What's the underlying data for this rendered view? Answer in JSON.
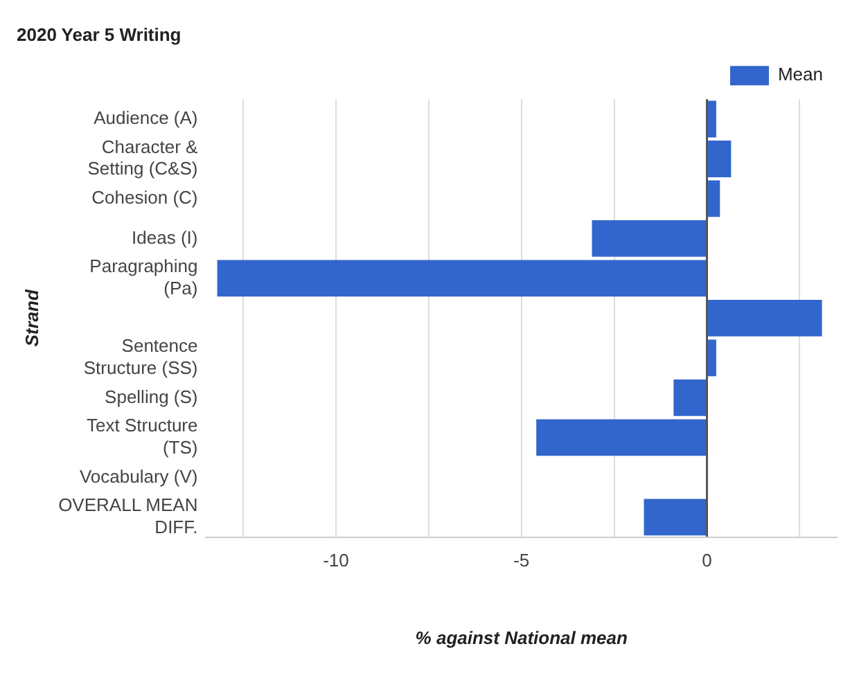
{
  "chart_data": {
    "type": "bar",
    "orientation": "horizontal",
    "title": "2020 Year 5 Writing",
    "xlabel": "% against National mean",
    "ylabel": "Strand",
    "categories": [
      "Audience (A)",
      "Character & Setting (C&S)",
      "Cohesion (C)",
      "Ideas (I)",
      "Paragraphing (Pa)",
      null,
      "Sentence Structure (SS)",
      "Spelling (S)",
      "Text Structure (TS)",
      "Vocabulary (V)",
      "OVERALL MEAN DIFF."
    ],
    "series": [
      {
        "name": "Mean",
        "color": "#3366cc",
        "values": [
          0.25,
          0.65,
          0.35,
          -3.1,
          -13.2,
          3.1,
          0.25,
          -0.9,
          -4.6,
          0,
          -1.7
        ]
      }
    ],
    "xlim": [
      -13.5,
      3.5
    ],
    "xticks": [
      {
        "value": -12.5,
        "label": null
      },
      -10,
      {
        "value": -7.5,
        "label": null
      },
      -5,
      {
        "value": -2.5,
        "label": null
      },
      0,
      {
        "value": 2.5,
        "label": null
      }
    ],
    "grid": true,
    "legend": "top right"
  }
}
